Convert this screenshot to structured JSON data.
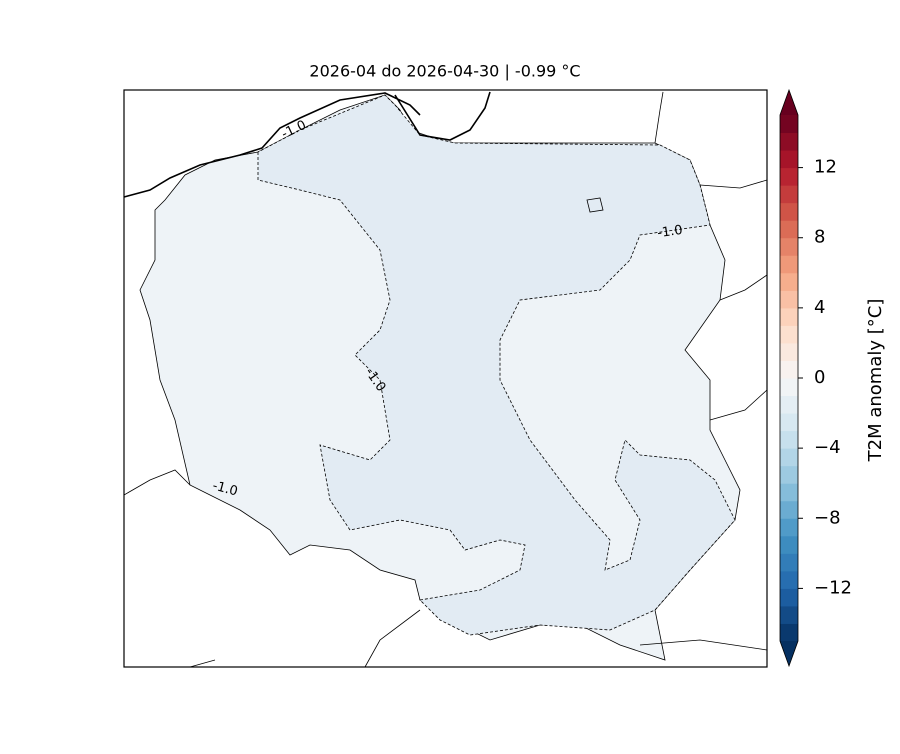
{
  "chart_data": {
    "type": "map",
    "title": "2026-04 do 2026-04-30 | -0.99 °C",
    "contour_level": {
      "value": -1,
      "label": "-1.0"
    },
    "colorbar": {
      "label": "T2M anomaly [°C]",
      "lim": [
        -15,
        15
      ],
      "step": 1,
      "extend": "both",
      "colors": [
        "#053061",
        "#2166ac",
        "#4393c3",
        "#92c5de",
        "#d1e5f0",
        "#f7f7f7",
        "#fddbc7",
        "#f4a582",
        "#d6604d",
        "#b2182b",
        "#67001f"
      ],
      "ticks": [
        {
          "value": -12,
          "label": "−12"
        },
        {
          "value": -8,
          "label": "−8"
        },
        {
          "value": -4,
          "label": "−4"
        },
        0,
        4,
        8,
        12
      ]
    }
  }
}
